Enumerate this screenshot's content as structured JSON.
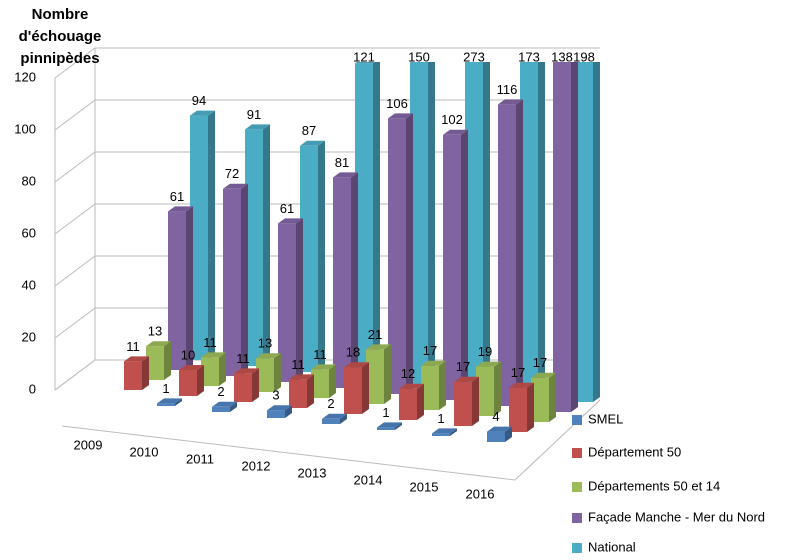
{
  "chart_data": {
    "type": "bar3d",
    "title": "Nombre d'échouage pinnipèdes",
    "categories": [
      "2009",
      "2010",
      "2011",
      "2012",
      "2013",
      "2014",
      "2015",
      "2016"
    ],
    "series": [
      {
        "name": "SMEL",
        "color": "#4f81bd",
        "values": [
          null,
          1,
          2,
          3,
          2,
          1,
          1,
          4
        ]
      },
      {
        "name": "Département 50",
        "color": "#c0504d",
        "values": [
          11,
          10,
          11,
          11,
          18,
          12,
          17,
          17
        ]
      },
      {
        "name": "Départements 50 et 14",
        "color": "#9bbb59",
        "values": [
          13,
          11,
          13,
          11,
          21,
          17,
          19,
          17
        ]
      },
      {
        "name": "Façade Manche - Mer du Nord",
        "color": "#8064a2",
        "values": [
          61,
          72,
          61,
          81,
          106,
          102,
          116,
          138
        ]
      },
      {
        "name": "National",
        "color": "#4bacc6",
        "values": [
          94,
          91,
          87,
          121,
          150,
          273,
          173,
          198
        ]
      }
    ],
    "ylim": [
      0,
      120
    ],
    "yticks": [
      0,
      20,
      40,
      60,
      80,
      100,
      120
    ],
    "grid": true,
    "legend": "right"
  }
}
